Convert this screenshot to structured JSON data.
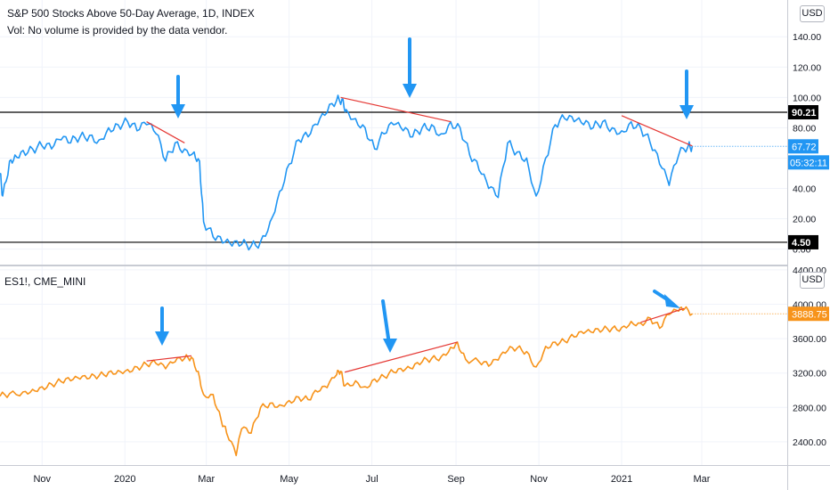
{
  "header": {
    "title": "S&P 500 Stocks Above 50-Day Average, 1D, INDEX",
    "subtitle": "Vol: No volume is provided by the data vendor."
  },
  "lower_header": {
    "title": "ES1!, CME_MINI"
  },
  "currency_label": "USD",
  "colors": {
    "breadth_line": "#2196f3",
    "es_line": "#f7931a",
    "trendline": "#e53935",
    "arrow": "#2196f3",
    "level_line": "#000000",
    "level_badge": "#000000",
    "price_badge_blue": "#2196f3",
    "price_badge_orange": "#f7931a"
  },
  "chart_data": [
    {
      "type": "line",
      "title": "S&P 500 Stocks Above 50-Day Average, 1D, INDEX",
      "y_ticks": [
        "0.00",
        "20.00",
        "40.00",
        "60.00",
        "80.00",
        "100.00",
        "120.00",
        "140.00"
      ],
      "ylim": [
        -2,
        156
      ],
      "x_ticks": [
        "Nov",
        "2020",
        "Mar",
        "May",
        "Jul",
        "Sep",
        "Nov",
        "2021",
        "Mar"
      ],
      "series": [
        {
          "x": [
            "2019-10-01",
            "2019-10-03",
            "2019-10-08",
            "2019-10-12",
            "2019-10-18",
            "2019-10-25",
            "2019-11-01",
            "2019-11-08",
            "2019-11-15",
            "2019-11-22",
            "2019-11-29",
            "2019-12-06",
            "2019-12-13",
            "2019-12-20",
            "2019-12-27",
            "2020-01-03",
            "2020-01-10",
            "2020-01-17",
            "2020-01-24",
            "2020-01-31",
            "2020-02-07",
            "2020-02-14",
            "2020-02-21",
            "2020-02-25",
            "2020-02-28",
            "2020-03-06",
            "2020-03-13",
            "2020-03-20",
            "2020-03-27",
            "2020-04-03",
            "2020-04-10",
            "2020-04-17",
            "2020-04-24",
            "2020-05-01",
            "2020-05-08",
            "2020-05-15",
            "2020-05-22",
            "2020-05-29",
            "2020-06-05",
            "2020-06-09",
            "2020-06-12",
            "2020-06-19",
            "2020-06-26",
            "2020-07-03",
            "2020-07-10",
            "2020-07-17",
            "2020-07-24",
            "2020-07-31",
            "2020-08-07",
            "2020-08-14",
            "2020-08-21",
            "2020-08-28",
            "2020-09-04",
            "2020-09-11",
            "2020-09-18",
            "2020-09-25",
            "2020-10-02",
            "2020-10-09",
            "2020-10-16",
            "2020-10-23",
            "2020-10-30",
            "2020-11-06",
            "2020-11-13",
            "2020-11-20",
            "2020-11-27",
            "2020-12-04",
            "2020-12-11",
            "2020-12-18",
            "2020-12-25",
            "2021-01-01",
            "2021-01-08",
            "2021-01-15",
            "2021-01-22",
            "2021-01-29",
            "2021-02-05",
            "2021-02-12",
            "2021-02-19",
            "2021-02-22"
          ],
          "values": [
            50,
            35,
            58,
            62,
            65,
            66,
            68,
            66,
            72,
            70,
            74,
            75,
            72,
            80,
            82,
            84,
            78,
            82,
            76,
            58,
            70,
            66,
            64,
            58,
            18,
            8,
            4,
            2,
            3,
            2,
            5,
            18,
            38,
            56,
            72,
            74,
            82,
            90,
            98,
            99,
            92,
            86,
            80,
            66,
            76,
            82,
            78,
            74,
            80,
            82,
            76,
            84,
            80,
            62,
            52,
            40,
            34,
            70,
            64,
            60,
            35,
            60,
            82,
            86,
            84,
            82,
            80,
            84,
            80,
            78,
            84,
            80,
            70,
            56,
            42,
            62,
            68,
            67.72
          ]
        }
      ],
      "levels": [
        {
          "value": 90.21,
          "label": "90.21"
        },
        {
          "value": 4.5,
          "label": "4.50"
        }
      ],
      "last_value_label": "67.72",
      "countdown_label": "05:32:11"
    },
    {
      "type": "line",
      "title": "ES1!, CME_MINI",
      "y_ticks": [
        "2400.00",
        "2800.00",
        "3200.00",
        "3600.00",
        "4000.00",
        "4400.00"
      ],
      "ylim": [
        2150,
        4420
      ],
      "x_ticks": [
        "Nov",
        "2020",
        "Mar",
        "May",
        "Jul",
        "Sep",
        "Nov",
        "2021",
        "Mar"
      ],
      "series": [
        {
          "x": [
            "2019-10-01",
            "2019-10-08",
            "2019-10-18",
            "2019-10-25",
            "2019-11-01",
            "2019-11-08",
            "2019-11-15",
            "2019-11-22",
            "2019-11-29",
            "2019-12-06",
            "2019-12-13",
            "2019-12-20",
            "2019-12-27",
            "2020-01-03",
            "2020-01-10",
            "2020-01-17",
            "2020-01-24",
            "2020-01-31",
            "2020-02-07",
            "2020-02-14",
            "2020-02-19",
            "2020-02-24",
            "2020-02-28",
            "2020-03-06",
            "2020-03-12",
            "2020-03-16",
            "2020-03-23",
            "2020-03-27",
            "2020-04-03",
            "2020-04-10",
            "2020-04-17",
            "2020-04-24",
            "2020-05-01",
            "2020-05-08",
            "2020-05-15",
            "2020-05-22",
            "2020-05-29",
            "2020-06-05",
            "2020-06-08",
            "2020-06-11",
            "2020-06-19",
            "2020-06-26",
            "2020-07-03",
            "2020-07-10",
            "2020-07-17",
            "2020-07-24",
            "2020-07-31",
            "2020-08-07",
            "2020-08-14",
            "2020-08-21",
            "2020-08-28",
            "2020-09-02",
            "2020-09-08",
            "2020-09-18",
            "2020-09-25",
            "2020-10-02",
            "2020-10-09",
            "2020-10-16",
            "2020-10-23",
            "2020-10-30",
            "2020-11-06",
            "2020-11-13",
            "2020-11-20",
            "2020-11-27",
            "2020-12-04",
            "2020-12-11",
            "2020-12-18",
            "2020-12-25",
            "2021-01-01",
            "2021-01-08",
            "2021-01-15",
            "2021-01-22",
            "2021-01-29",
            "2021-02-05",
            "2021-02-12",
            "2021-02-16",
            "2021-02-22"
          ],
          "values": [
            2930,
            2960,
            2980,
            3010,
            3040,
            3070,
            3100,
            3110,
            3130,
            3140,
            3170,
            3210,
            3230,
            3240,
            3270,
            3300,
            3310,
            3250,
            3330,
            3370,
            3385,
            3220,
            2950,
            2950,
            2650,
            2500,
            2240,
            2550,
            2500,
            2800,
            2850,
            2830,
            2880,
            2920,
            2890,
            2980,
            3030,
            3180,
            3220,
            3050,
            3110,
            3040,
            3130,
            3160,
            3210,
            3220,
            3250,
            3330,
            3370,
            3390,
            3500,
            3560,
            3360,
            3330,
            3280,
            3350,
            3460,
            3490,
            3450,
            3270,
            3510,
            3560,
            3570,
            3620,
            3660,
            3670,
            3700,
            3720,
            3730,
            3800,
            3780,
            3840,
            3720,
            3880,
            3920,
            3940,
            3888.75
          ]
        }
      ],
      "last_value_label": "3888.75"
    }
  ]
}
